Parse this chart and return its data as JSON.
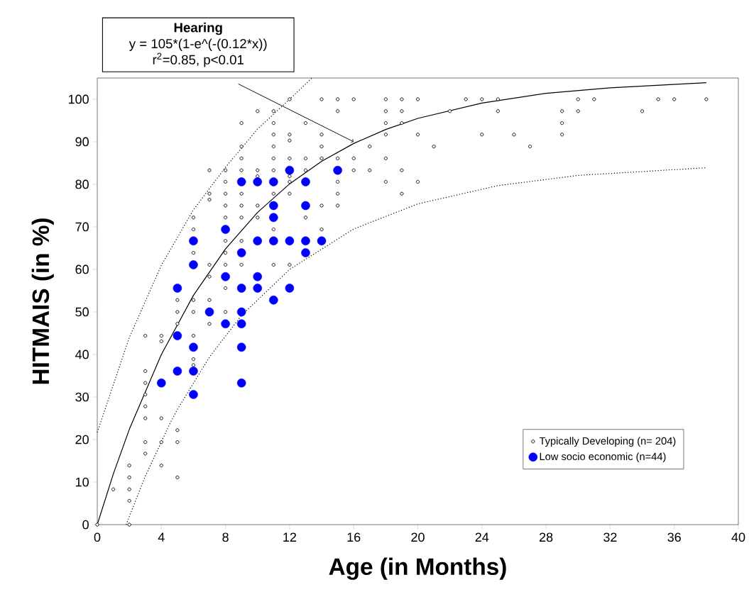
{
  "chart_data": {
    "type": "scatter",
    "xlabel": "Age (in Months)",
    "ylabel": "HITMAIS (in %)",
    "xlim": [
      0,
      40
    ],
    "ylim": [
      0,
      105
    ],
    "xticks": [
      0,
      4,
      8,
      12,
      16,
      20,
      24,
      28,
      32,
      36,
      40
    ],
    "yticks": [
      0,
      10,
      20,
      30,
      40,
      50,
      60,
      70,
      80,
      90,
      100
    ],
    "legend": "bottom right",
    "marker": "circle",
    "annotations": [
      "Hearing",
      "y = 105*(1-e^(-(0.12*x))",
      {
        "text": "r$^{2}$=0.85, p<0.01",
        "x": 16,
        "y": 90
      }
    ],
    "series": [
      {
        "name": "Typically Developing (n= 204)",
        "color": "#000000",
        "x": [
          0,
          1,
          2,
          2,
          2,
          2,
          2,
          3,
          3,
          3,
          3,
          3,
          3,
          3,
          3,
          4,
          4,
          4,
          4,
          4,
          5,
          5,
          5,
          5,
          5,
          5,
          6,
          6,
          6,
          6,
          6,
          6,
          6,
          6,
          7,
          7,
          7,
          7,
          7,
          7,
          7,
          8,
          8,
          8,
          8,
          8,
          8,
          8,
          8,
          8,
          8,
          9,
          9,
          9,
          9,
          9,
          9,
          9,
          9,
          9,
          10,
          10,
          10,
          10,
          10,
          11,
          11,
          11,
          11,
          11,
          11,
          11,
          11,
          11,
          12,
          12,
          12,
          12,
          12,
          12,
          12,
          12,
          13,
          13,
          13,
          13,
          14,
          14,
          14,
          14,
          14,
          14,
          15,
          15,
          15,
          15,
          15,
          15,
          16,
          16,
          16,
          17,
          17,
          18,
          18,
          18,
          18,
          18,
          18,
          19,
          19,
          19,
          19,
          19,
          20,
          20,
          20,
          21,
          22,
          23,
          24,
          24,
          25,
          25,
          26,
          27,
          29,
          29,
          29,
          30,
          30,
          31,
          34,
          35,
          36,
          38
        ],
        "values": [
          0,
          8.3,
          0,
          5.6,
          8.3,
          11.1,
          13.9,
          44.4,
          36.1,
          33.3,
          30.6,
          27.8,
          25,
          19.4,
          16.7,
          44.4,
          43.1,
          25,
          19.4,
          13.9,
          52.8,
          50,
          47.2,
          22.2,
          19.4,
          11.1,
          72.2,
          69.4,
          63.9,
          52.8,
          50,
          44.4,
          38.9,
          37.5,
          83.3,
          77.8,
          76.4,
          61.1,
          58.3,
          52.8,
          47.2,
          83.3,
          80.6,
          77.8,
          75,
          72.2,
          66.7,
          63.9,
          61.1,
          55.6,
          50,
          94.4,
          88.9,
          86.1,
          83.3,
          77.8,
          75,
          72.2,
          66.7,
          61.1,
          97.2,
          83.3,
          81.9,
          75,
          72.2,
          97.2,
          94.4,
          91.7,
          88.9,
          86.1,
          83.3,
          77.8,
          69.4,
          61.1,
          100,
          91.7,
          90.3,
          86.1,
          81.9,
          80.6,
          77.8,
          61.1,
          94.4,
          86.1,
          83.3,
          72.2,
          100,
          91.7,
          88.9,
          86.1,
          75,
          69.4,
          100,
          97.2,
          86.1,
          80.6,
          77.8,
          75,
          100,
          86.1,
          83.3,
          88.9,
          83.3,
          100,
          97.2,
          94.4,
          91.7,
          86.1,
          80.6,
          100,
          97.2,
          94.4,
          83.3,
          77.8,
          100,
          91.7,
          80.6,
          88.9,
          97.2,
          100,
          100,
          91.7,
          100,
          97.2,
          91.7,
          88.9,
          97.2,
          94.4,
          91.7,
          100,
          97.2,
          100,
          97.2,
          100,
          100,
          100
        ]
      },
      {
        "name": "Low socio economic (n=44)",
        "color": "#0000ff",
        "x": [
          4,
          5,
          5,
          5,
          6,
          6,
          6,
          6,
          6,
          7,
          8,
          8,
          8,
          9,
          9,
          9,
          9,
          9,
          9,
          9,
          10,
          10,
          10,
          10,
          11,
          11,
          11,
          11,
          11,
          12,
          12,
          12,
          13,
          13,
          13,
          13,
          14,
          15
        ],
        "values": [
          33.3,
          55.6,
          44.4,
          36.1,
          66.7,
          61.1,
          41.7,
          36.1,
          30.6,
          50,
          69.4,
          58.3,
          47.2,
          80.6,
          63.9,
          55.6,
          50,
          47.2,
          41.7,
          33.3,
          80.6,
          66.7,
          58.3,
          55.6,
          80.6,
          75,
          72.2,
          66.7,
          52.8,
          83.3,
          66.7,
          55.6,
          80.6,
          75,
          66.7,
          63.9,
          66.7,
          83.3
        ]
      },
      {
        "type": "line",
        "color": "#000000",
        "marker": "none",
        "line_style": "solid",
        "x": [
          0,
          1,
          2,
          4,
          6,
          8,
          10,
          12,
          14,
          16,
          18,
          20,
          24,
          28,
          32,
          38
        ],
        "values": [
          0,
          11.9,
          22.4,
          40.0,
          53.9,
          64.8,
          73.4,
          80.1,
          85.4,
          89.6,
          92.9,
          95.5,
          99.1,
          101.4,
          102.7,
          103.9
        ]
      },
      {
        "type": "line",
        "color": "#000000",
        "marker": "none",
        "line_style": "dotted",
        "x": [
          0,
          2,
          4,
          6,
          8,
          10,
          12,
          13.4
        ],
        "values": [
          21.7,
          44,
          61,
          74,
          84,
          93,
          100,
          105
        ]
      },
      {
        "type": "line",
        "color": "#000000",
        "marker": "none",
        "line_style": "dotted",
        "x": [
          1.8,
          3,
          4.5,
          5,
          7,
          9,
          12,
          16,
          20,
          25,
          30,
          38
        ],
        "values": [
          0,
          11.4,
          23.5,
          27.1,
          39.4,
          49.2,
          60.0,
          69.5,
          75.4,
          79.7,
          82.1,
          83.9
        ]
      }
    ]
  }
}
